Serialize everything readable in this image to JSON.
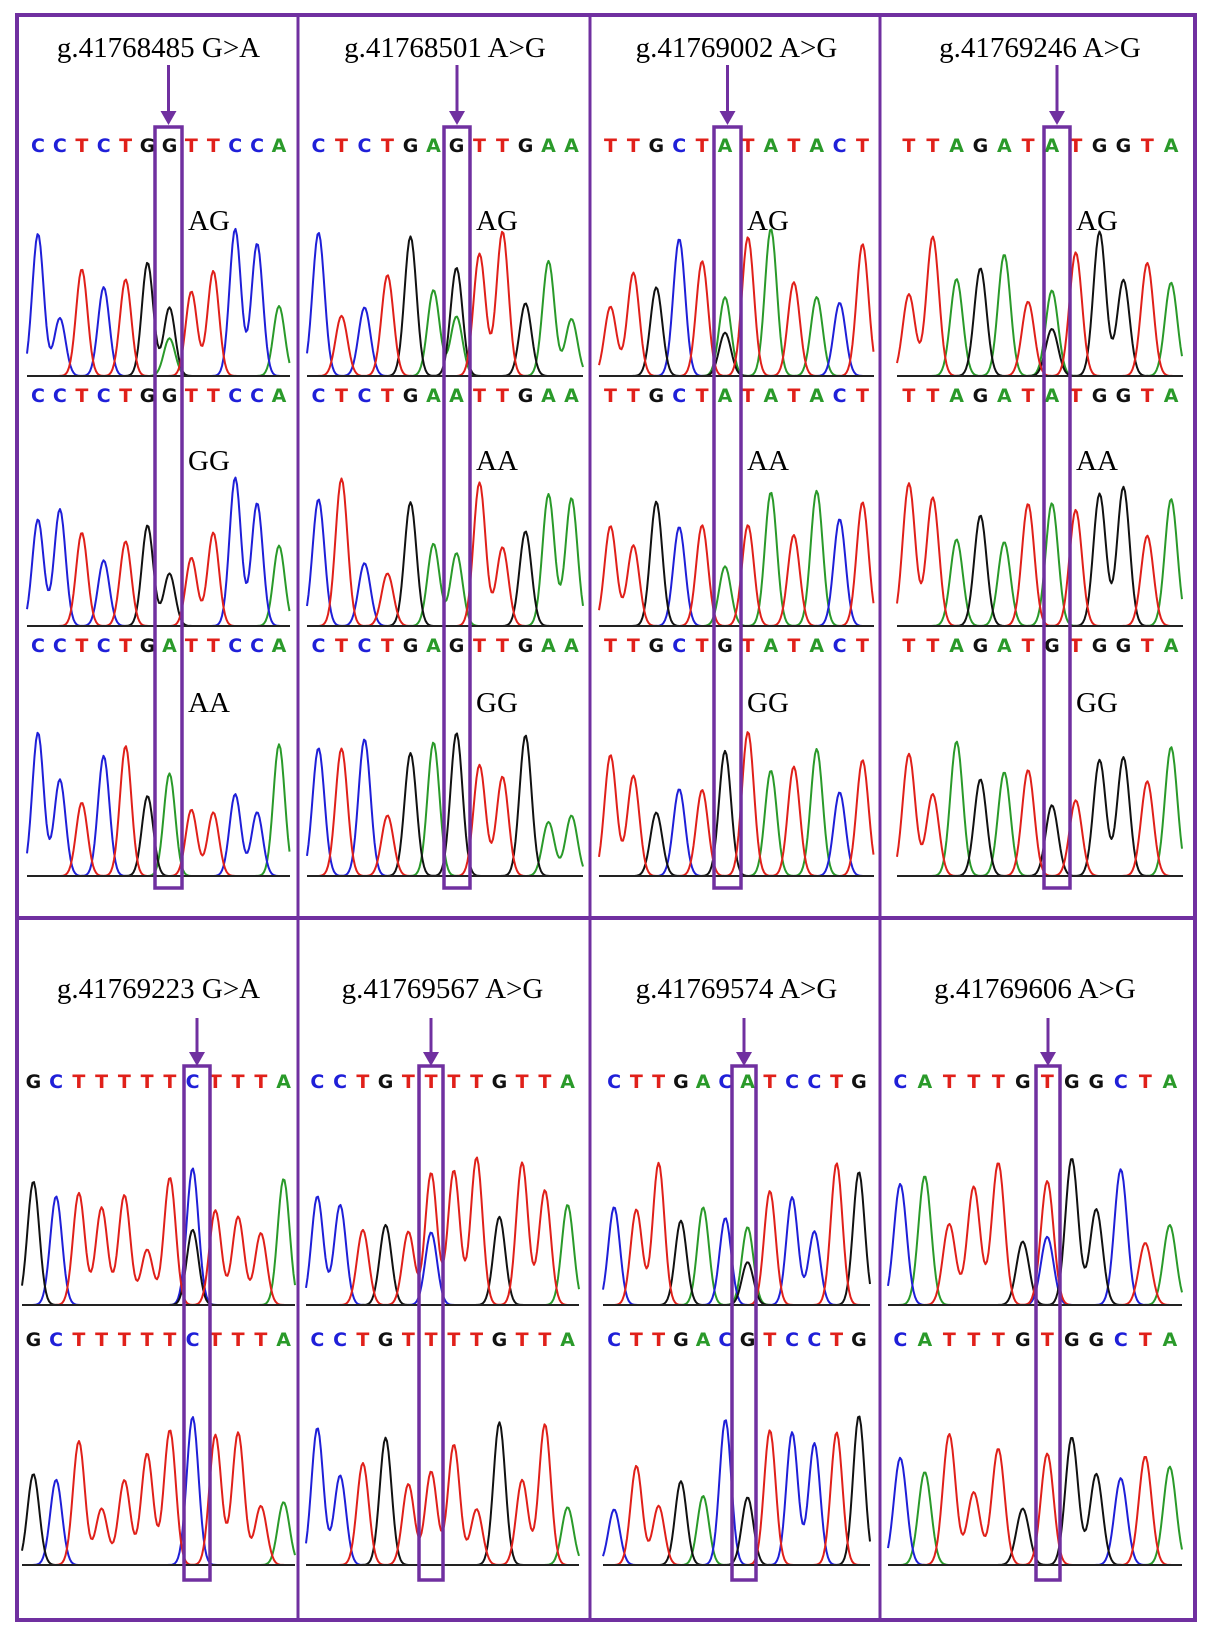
{
  "colors": {
    "frame": "#7030a0",
    "A": "#2a9a2a",
    "C": "#1f1fd8",
    "G": "#111111",
    "T": "#e0201a"
  },
  "panels": [
    {
      "title": "g.41768485 G>A",
      "tracks": [
        {
          "genotype": "AG",
          "seq": "CCTCTGGTTCCA",
          "display": "CCTCTGGTTCCA",
          "het": "A"
        },
        {
          "genotype": "GG",
          "seq": "CCTCTGGTTCCA",
          "display": "CCTCTGGTTCCA"
        },
        {
          "genotype": "AA",
          "seq": "CCTCTGATTCCA",
          "display": "CCTCTGATTCCA"
        }
      ]
    },
    {
      "title": "g.41768501 A>G",
      "tracks": [
        {
          "genotype": "AG",
          "seq": "CTCTGAGTTGAA",
          "display": "CTCTGAGTTGAA",
          "het": "A"
        },
        {
          "genotype": "AA",
          "seq": "CTCTGAATTGAA",
          "display": "CTCTGAATTGAA"
        },
        {
          "genotype": "GG",
          "seq": "CTCTGAGTTGAA",
          "display": "CTCTGAGTTGAA"
        }
      ]
    },
    {
      "title": "g.41769002 A>G",
      "tracks": [
        {
          "genotype": "AG",
          "seq": "TTGCTATATACT",
          "display": "TTGCTATATACT",
          "het": "G"
        },
        {
          "genotype": "AA",
          "seq": "TTGCTATATACT",
          "display": "TTGCTATATACT"
        },
        {
          "genotype": "GG",
          "seq": "TTGCTGTATACT",
          "display": "TTGCTGTATACT"
        }
      ]
    },
    {
      "title": "g.41769246 A>G",
      "tracks": [
        {
          "genotype": "AG",
          "seq": "TTAGATATGGTA",
          "display": "TTAGATATGGTA",
          "het": "G"
        },
        {
          "genotype": "AA",
          "seq": "TTAGATATGGTA",
          "display": "TTAGATATGGTA"
        },
        {
          "genotype": "GG",
          "seq": "TTAGATGTGGTA",
          "display": "TTAGATGTGGTA"
        }
      ]
    },
    {
      "title": "g.41769223 G>A",
      "tracks": [
        {
          "genotype": "",
          "seq": "GCTTTTTCTTTA",
          "display": "GCTTTTTCTTTA",
          "het": "G"
        },
        {
          "genotype": "",
          "seq": "GCTTTTTCTTTA",
          "display": "GCTTTTTCTTTA"
        }
      ]
    },
    {
      "title": "g.41769567 A>G",
      "tracks": [
        {
          "genotype": "",
          "seq": "CCTGTTTTGTTA",
          "display": "CCTGTTTTGTTA",
          "het": "C"
        },
        {
          "genotype": "",
          "seq": "CCTGTTTTGTTA",
          "display": "CCTGTTTTGTTA"
        }
      ]
    },
    {
      "title": "g.41769574 A>G",
      "tracks": [
        {
          "genotype": "",
          "seq": "CTTGACATCCTG",
          "display": "CTTGACATCCTG",
          "het": "G"
        },
        {
          "genotype": "",
          "seq": "CTTGACGTCCTG",
          "display": "CTTGACGTCCTG"
        }
      ]
    },
    {
      "title": "g.41769606 A>G",
      "tracks": [
        {
          "genotype": "",
          "seq": "CATTTGTGGCTA",
          "display": "CATTTGTGGCTA",
          "het": "C"
        },
        {
          "genotype": "",
          "seq": "CATTTGTGGCTA",
          "display": "CATTTGTGGCTA"
        }
      ]
    }
  ]
}
